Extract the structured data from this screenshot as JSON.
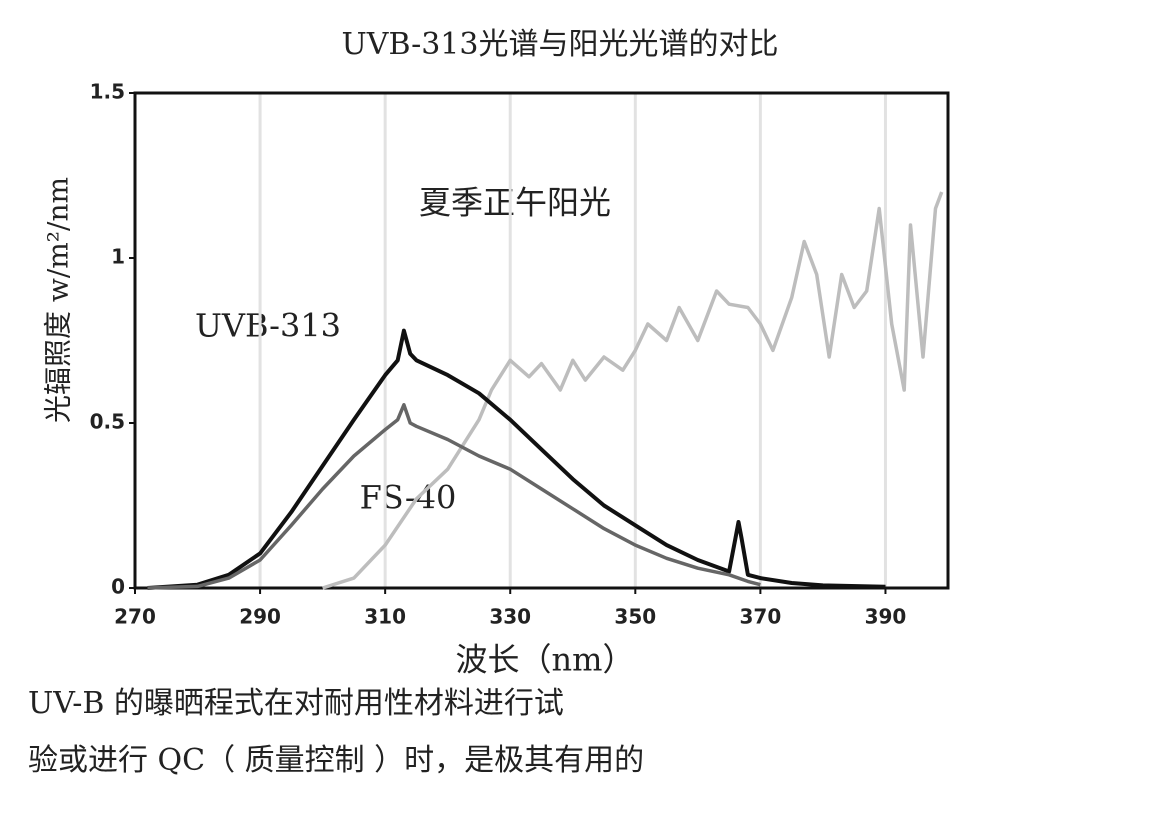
{
  "chart_data": {
    "type": "line",
    "title": "UVB-313光谱与阳光光谱的对比",
    "ylabel": "光辐照度 w/m²/nm",
    "xlabel": "波长（nm）",
    "annotations": [
      "夏季正午阳光",
      "UVB-313",
      "FS-40"
    ],
    "caption": [
      "UV-B 的曝晒程式在对耐用性材料进行试",
      "验或进行 QC（ 质量控制 ）时，是极其有用的"
    ],
    "xlim": [
      270,
      400
    ],
    "xticks": [
      270,
      290,
      310,
      330,
      350,
      370,
      390
    ],
    "ylim": [
      0,
      1.5
    ],
    "yticks": [
      0,
      0.5,
      1,
      1.5
    ],
    "grid": true,
    "series": [
      {
        "name": "夏季正午阳光",
        "color": "#bdbdbd",
        "x": [
          300,
          305,
          310,
          315,
          320,
          325,
          327,
          330,
          333,
          335,
          338,
          340,
          342,
          345,
          348,
          350,
          352,
          355,
          357,
          360,
          363,
          365,
          368,
          370,
          372,
          375,
          377,
          379,
          381,
          383,
          385,
          387,
          389,
          391,
          393,
          394,
          396,
          398,
          399
        ],
        "values": [
          0,
          0.03,
          0.13,
          0.27,
          0.36,
          0.51,
          0.6,
          0.69,
          0.64,
          0.68,
          0.6,
          0.69,
          0.63,
          0.7,
          0.66,
          0.72,
          0.8,
          0.75,
          0.85,
          0.75,
          0.9,
          0.86,
          0.85,
          0.8,
          0.72,
          0.88,
          1.05,
          0.95,
          0.7,
          0.95,
          0.85,
          0.9,
          1.15,
          0.8,
          0.6,
          1.1,
          0.7,
          1.15,
          1.2
        ]
      },
      {
        "name": "UVB-313",
        "color": "#111111",
        "x": [
          272,
          280,
          285,
          290,
          295,
          300,
          305,
          310,
          312,
          313,
          314,
          315,
          320,
          325,
          330,
          335,
          340,
          345,
          350,
          355,
          360,
          365,
          366,
          366.5,
          367,
          368,
          370,
          375,
          380,
          390
        ],
        "values": [
          0,
          0.01,
          0.04,
          0.105,
          0.23,
          0.37,
          0.51,
          0.645,
          0.69,
          0.78,
          0.71,
          0.69,
          0.645,
          0.59,
          0.51,
          0.42,
          0.33,
          0.25,
          0.19,
          0.13,
          0.085,
          0.05,
          0.15,
          0.2,
          0.15,
          0.04,
          0.03,
          0.015,
          0.008,
          0.004
        ]
      },
      {
        "name": "FS-40",
        "color": "#666666",
        "x": [
          272,
          280,
          285,
          290,
          295,
          300,
          305,
          310,
          312,
          313,
          314,
          315,
          320,
          325,
          330,
          335,
          340,
          345,
          350,
          355,
          360,
          365,
          368,
          370
        ],
        "values": [
          0,
          0.005,
          0.03,
          0.085,
          0.19,
          0.3,
          0.4,
          0.48,
          0.51,
          0.555,
          0.5,
          0.49,
          0.45,
          0.4,
          0.36,
          0.3,
          0.24,
          0.18,
          0.13,
          0.09,
          0.06,
          0.04,
          0.02,
          0.01
        ]
      }
    ]
  }
}
